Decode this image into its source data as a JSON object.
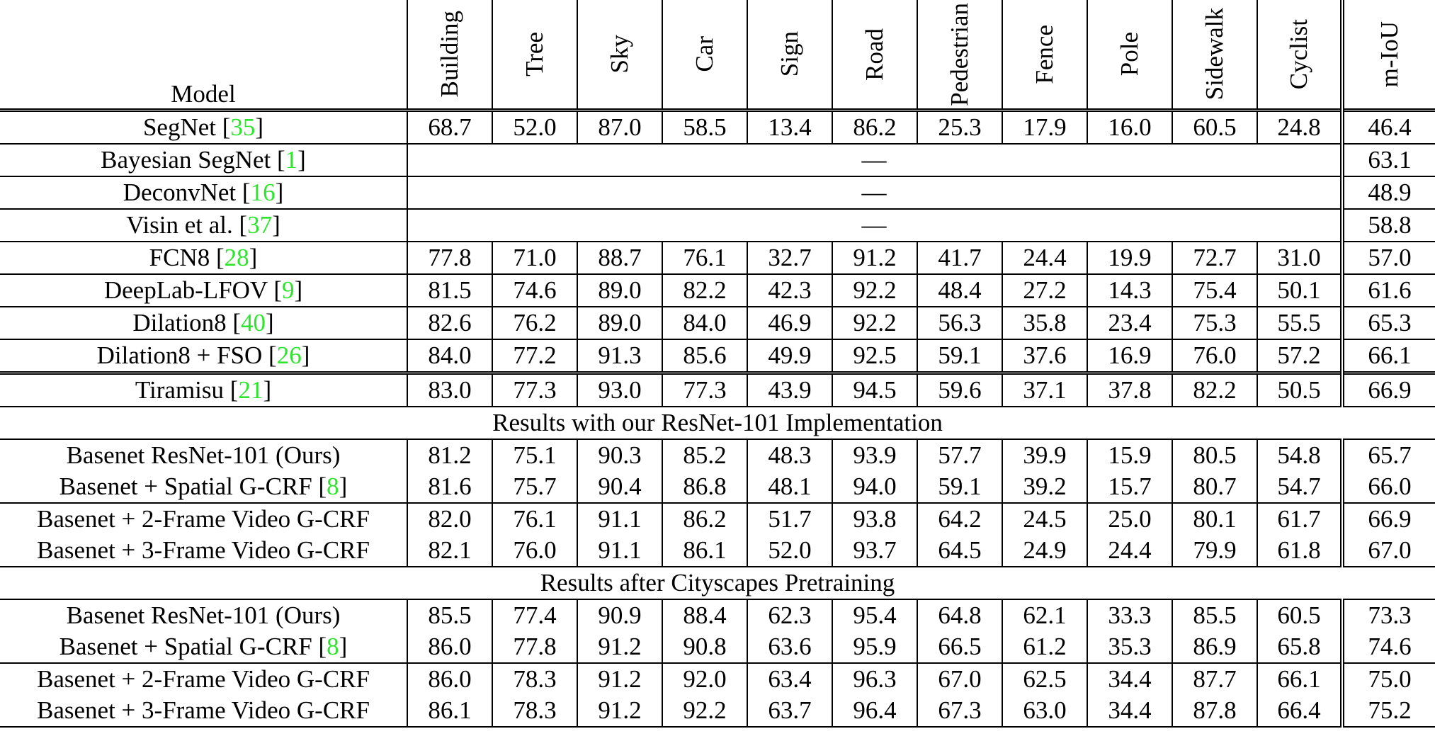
{
  "header": {
    "model": "Model",
    "columns": [
      "Building",
      "Tree",
      "Sky",
      "Car",
      "Sign",
      "Road",
      "Pedestrian",
      "Fence",
      "Pole",
      "Sidewalk",
      "Cyclist"
    ],
    "miou": "m-IoU"
  },
  "rows": [
    {
      "model": "SegNet",
      "cite": "35",
      "values": [
        "68.7",
        "52.0",
        "87.0",
        "58.5",
        "13.4",
        "86.2",
        "25.3",
        "17.9",
        "16.0",
        "60.5",
        "24.8"
      ],
      "miou": "46.4",
      "rule": "none"
    },
    {
      "model": "Bayesian SegNet",
      "cite": "1",
      "empty": "—",
      "miou": "63.1",
      "rule": "single"
    },
    {
      "model": "DeconvNet",
      "cite": "16",
      "empty": "—",
      "miou": "48.9",
      "rule": "single"
    },
    {
      "model": "Visin et al.",
      "cite": "37",
      "empty": "—",
      "miou": "58.8",
      "rule": "single"
    },
    {
      "model": "FCN8",
      "cite": "28",
      "values": [
        "77.8",
        "71.0",
        "88.7",
        "76.1",
        "32.7",
        "91.2",
        "41.7",
        "24.4",
        "19.9",
        "72.7",
        "31.0"
      ],
      "miou": "57.0",
      "rule": "single"
    },
    {
      "model": "DeepLab-LFOV",
      "cite": "9",
      "values": [
        "81.5",
        "74.6",
        "89.0",
        "82.2",
        "42.3",
        "92.2",
        "48.4",
        "27.2",
        "14.3",
        "75.4",
        "50.1"
      ],
      "miou": "61.6",
      "rule": "single"
    },
    {
      "model": "Dilation8",
      "cite": "40",
      "values": [
        "82.6",
        "76.2",
        "89.0",
        "84.0",
        "46.9",
        "92.2",
        "56.3",
        "35.8",
        "23.4",
        "75.3",
        "55.5"
      ],
      "miou": "65.3",
      "rule": "single"
    },
    {
      "model": "Dilation8 + FSO",
      "cite": "26",
      "values": [
        "84.0",
        "77.2",
        "91.3",
        "85.6",
        "49.9",
        "92.5",
        "59.1",
        "37.6",
        "16.9",
        "76.0",
        "57.2"
      ],
      "miou": "66.1",
      "rule": "single"
    },
    {
      "model": "Tiramisu",
      "cite": "21",
      "values": [
        "83.0",
        "77.3",
        "93.0",
        "77.3",
        "43.9",
        "94.5",
        "59.6",
        "37.1",
        "37.8",
        "82.2",
        "50.5"
      ],
      "miou": "66.9",
      "rule": "double"
    },
    {
      "section": "Results with our ResNet-101 Implementation"
    },
    {
      "model": "Basenet ResNet-101 (Ours)",
      "values": [
        "81.2",
        "75.1",
        "90.3",
        "85.2",
        "48.3",
        "93.9",
        "57.7",
        "39.9",
        "15.9",
        "80.5",
        "54.8"
      ],
      "miou": "65.7",
      "rule": "single"
    },
    {
      "model": "Basenet + Spatial G-CRF",
      "cite": "8",
      "values": [
        "81.6",
        "75.7",
        "90.4",
        "86.8",
        "48.1",
        "94.0",
        "59.1",
        "39.2",
        "15.7",
        "80.7",
        "54.7"
      ],
      "miou": "66.0",
      "rule": "none"
    },
    {
      "model": "Basenet + 2-Frame Video G-CRF",
      "values": [
        "82.0",
        "76.1",
        "91.1",
        "86.2",
        "51.7",
        "93.8",
        "64.2",
        "24.5",
        "25.0",
        "80.1",
        "61.7"
      ],
      "miou": "66.9",
      "rule": "single"
    },
    {
      "model": "Basenet + 3-Frame Video G-CRF",
      "values": [
        "82.1",
        "76.0",
        "91.1",
        "86.1",
        "52.0",
        "93.7",
        "64.5",
        "24.9",
        "24.4",
        "79.9",
        "61.8"
      ],
      "miou": "67.0",
      "rule": "none"
    },
    {
      "section": "Results after Cityscapes Pretraining"
    },
    {
      "model": "Basenet ResNet-101 (Ours)",
      "values": [
        "85.5",
        "77.4",
        "90.9",
        "88.4",
        "62.3",
        "95.4",
        "64.8",
        "62.1",
        "33.3",
        "85.5",
        "60.5"
      ],
      "miou": "73.3",
      "rule": "single"
    },
    {
      "model": "Basenet + Spatial G-CRF",
      "cite": "8",
      "values": [
        "86.0",
        "77.8",
        "91.2",
        "90.8",
        "63.6",
        "95.9",
        "66.5",
        "61.2",
        "35.3",
        "86.9",
        "65.8"
      ],
      "miou": "74.6",
      "rule": "none"
    },
    {
      "model": "Basenet + 2-Frame Video G-CRF",
      "values": [
        "86.0",
        "78.3",
        "91.2",
        "92.0",
        "63.4",
        "96.3",
        "67.0",
        "62.5",
        "34.4",
        "87.7",
        "66.1"
      ],
      "miou": "75.0",
      "rule": "single"
    },
    {
      "model": "Basenet + 3-Frame Video G-CRF",
      "values": [
        "86.1",
        "78.3",
        "91.2",
        "92.2",
        "63.7",
        "96.4",
        "67.3",
        "63.0",
        "34.4",
        "87.8",
        "66.4"
      ],
      "miou": "75.2",
      "rule": "none"
    }
  ]
}
